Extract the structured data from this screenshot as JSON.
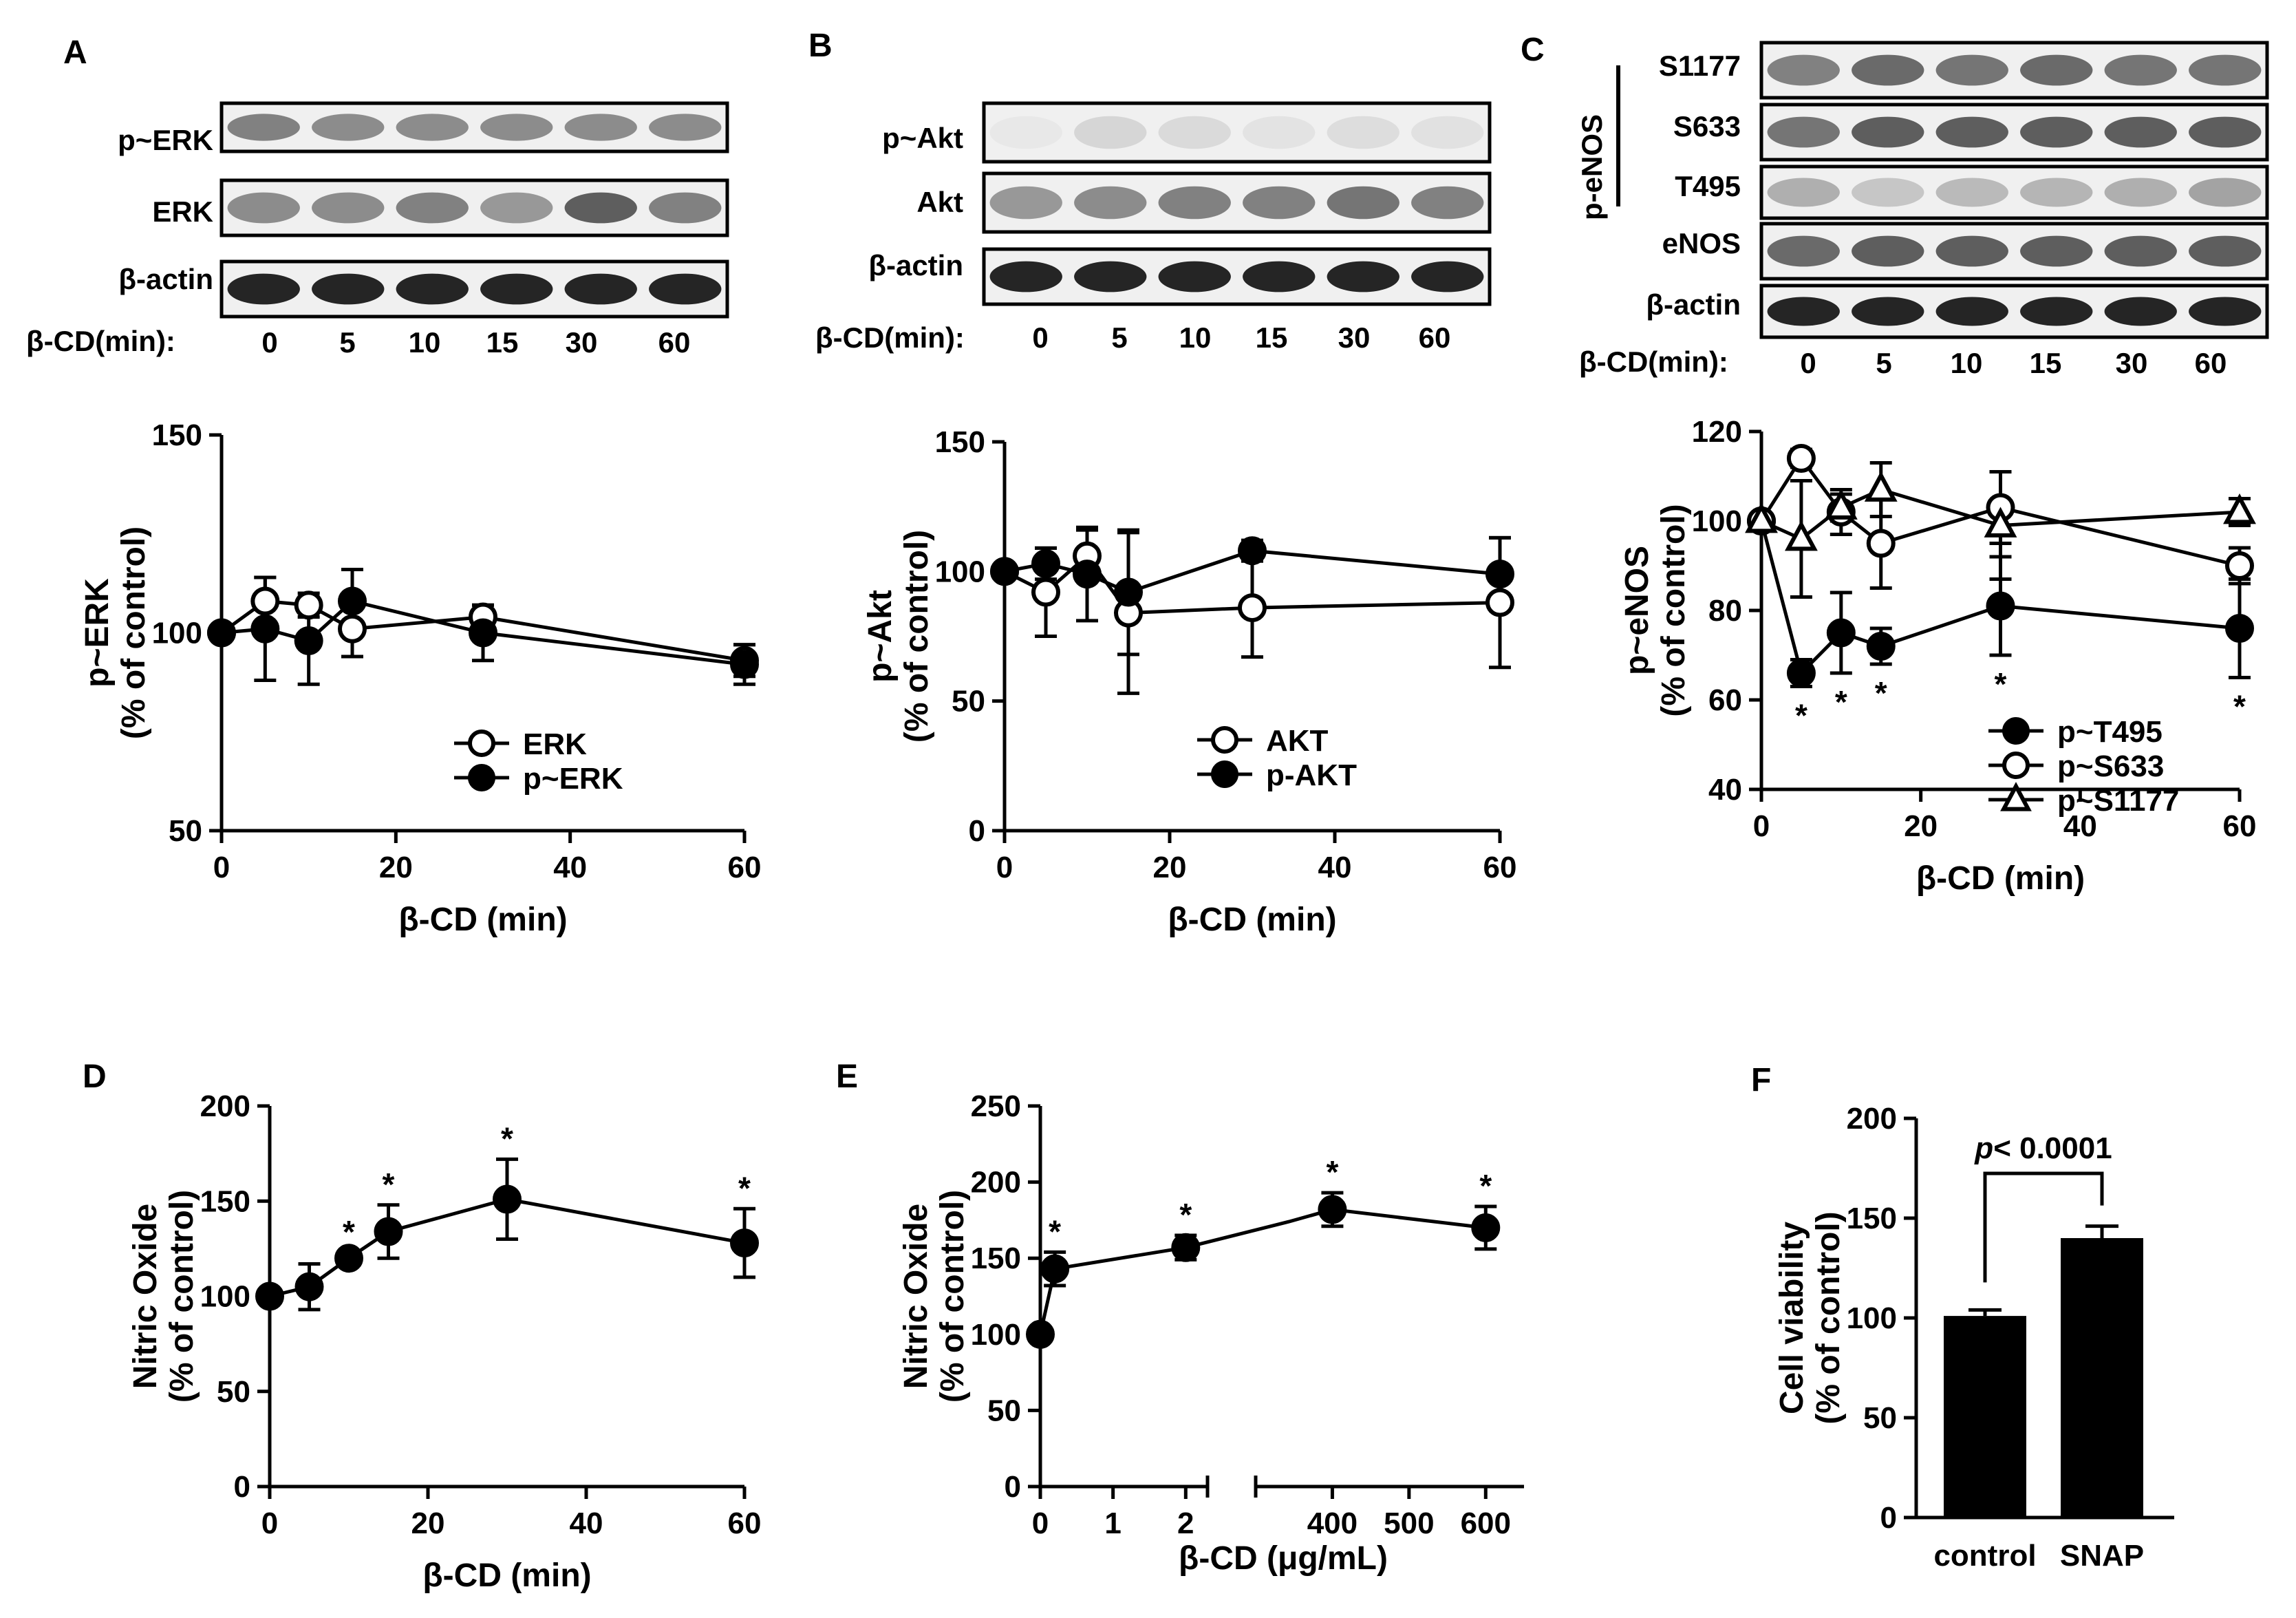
{
  "blots": [
    {
      "letter": "A",
      "rows": [
        "p~ERK",
        "ERK",
        "β-actin"
      ],
      "lane_title": "β-CD(min):",
      "lanes": [
        "0",
        "5",
        "10",
        "15",
        "30",
        "60"
      ]
    },
    {
      "letter": "B",
      "rows": [
        "p~Akt",
        "Akt",
        "β-actin"
      ],
      "lane_title": "β-CD(min):",
      "lanes": [
        "0",
        "5",
        "10",
        "15",
        "30",
        "60"
      ]
    },
    {
      "letter": "C",
      "rows": [
        "S1177",
        "S633",
        "T495",
        "eNOS",
        "β-actin"
      ],
      "group_label": "p-eNOS",
      "lane_title": "β-CD(min):",
      "lanes": [
        "0",
        "5",
        "10",
        "15",
        "30",
        "60"
      ]
    }
  ],
  "panel_letters": {
    "D": "D",
    "E": "E",
    "F": "F"
  },
  "colors": {
    "ink": "#000000",
    "paper": "#ffffff",
    "blot_bg": "#f2f2f2"
  },
  "chart_data": [
    {
      "id": "A",
      "type": "line",
      "xlabel": "β-CD (min)",
      "ylabel": "p~ERK",
      "ylabel2": "(% of control)",
      "xlim": [
        0,
        60
      ],
      "ylim": [
        50,
        150
      ],
      "xticks": [
        0,
        20,
        40,
        60
      ],
      "yticks": [
        50,
        100,
        150
      ],
      "legend_position": "bottom-right",
      "series": [
        {
          "name": "ERK",
          "marker": "open-circle",
          "x": [
            0,
            5,
            10,
            15,
            30,
            60
          ],
          "y": [
            100,
            108,
            107,
            101,
            104,
            93
          ],
          "err": [
            0,
            6,
            3,
            7,
            3,
            4
          ]
        },
        {
          "name": "p~ERK",
          "marker": "filled-circle",
          "x": [
            0,
            5,
            10,
            15,
            30,
            60
          ],
          "y": [
            100,
            101,
            98,
            108,
            100,
            92
          ],
          "err": [
            0,
            13,
            11,
            8,
            7,
            5
          ]
        }
      ]
    },
    {
      "id": "B",
      "type": "line",
      "xlabel": "β-CD (min)",
      "ylabel": "p~Akt",
      "ylabel2": "(% of control)",
      "xlim": [
        0,
        60
      ],
      "ylim": [
        0,
        150
      ],
      "xticks": [
        0,
        20,
        40,
        60
      ],
      "yticks": [
        0,
        50,
        100,
        150
      ],
      "legend_position": "bottom-right",
      "series": [
        {
          "name": "AKT",
          "marker": "open-circle",
          "x": [
            0,
            5,
            10,
            15,
            30,
            60
          ],
          "y": [
            100,
            92,
            106,
            84,
            86,
            88
          ],
          "err": [
            0,
            17,
            10,
            31,
            19,
            25
          ]
        },
        {
          "name": "p-AKT",
          "marker": "filled-circle",
          "x": [
            0,
            5,
            10,
            15,
            30,
            60
          ],
          "y": [
            100,
            103,
            99,
            92,
            108,
            99
          ],
          "err": [
            0,
            6,
            18,
            24,
            4,
            14
          ]
        }
      ]
    },
    {
      "id": "C",
      "type": "line",
      "xlabel": "β-CD (min)",
      "ylabel": "p~eNOS",
      "ylabel2": "(% of control)",
      "xlim": [
        0,
        60
      ],
      "ylim": [
        40,
        120
      ],
      "xticks": [
        0,
        20,
        40,
        60
      ],
      "yticks": [
        40,
        60,
        80,
        100,
        120
      ],
      "legend_position": "bottom-right",
      "annotations": [
        {
          "x": 5,
          "text": "*"
        },
        {
          "x": 10,
          "text": "*"
        },
        {
          "x": 15,
          "text": "*"
        },
        {
          "x": 30,
          "text": "*"
        },
        {
          "x": 60,
          "text": "*"
        }
      ],
      "series": [
        {
          "name": "p~T495",
          "marker": "filled-circle",
          "x": [
            0,
            5,
            10,
            15,
            30,
            60
          ],
          "y": [
            100,
            66,
            75,
            72,
            81,
            76
          ],
          "err": [
            0,
            3,
            9,
            4,
            11,
            11
          ]
        },
        {
          "name": "p~S633",
          "marker": "open-circle",
          "x": [
            0,
            5,
            10,
            15,
            30,
            60
          ],
          "y": [
            100,
            114,
            102,
            95,
            103,
            90
          ],
          "err": [
            0,
            2,
            5,
            10,
            8,
            4
          ]
        },
        {
          "name": "p~S1177",
          "marker": "open-triangle",
          "x": [
            0,
            5,
            10,
            15,
            30,
            60
          ],
          "y": [
            100,
            96,
            103,
            107,
            99,
            102
          ],
          "err": [
            0,
            13,
            3,
            6,
            12,
            3
          ]
        }
      ]
    },
    {
      "id": "D",
      "type": "line",
      "xlabel": "β-CD (min)",
      "ylabel": "Nitric Oxide",
      "ylabel2": "(% of control)",
      "xlim": [
        0,
        60
      ],
      "ylim": [
        0,
        200
      ],
      "xticks": [
        0,
        20,
        40,
        60
      ],
      "yticks": [
        0,
        50,
        100,
        150,
        200
      ],
      "annotations": [
        {
          "x": 10,
          "text": "*"
        },
        {
          "x": 15,
          "text": "*"
        },
        {
          "x": 30,
          "text": "*"
        },
        {
          "x": 60,
          "text": "*"
        }
      ],
      "series": [
        {
          "name": "Nitric Oxide",
          "marker": "filled-circle",
          "x": [
            0,
            5,
            10,
            15,
            30,
            60
          ],
          "y": [
            100,
            105,
            120,
            134,
            151,
            128
          ],
          "err": [
            0,
            12,
            3,
            14,
            21,
            18
          ]
        }
      ]
    },
    {
      "id": "E",
      "type": "line",
      "xlabel": "β-CD (μg/mL)",
      "ylabel": "Nitric Oxide",
      "ylabel2": "(% of control)",
      "xlim": [
        0,
        600
      ],
      "ylim": [
        0,
        250
      ],
      "broken_axis": true,
      "xticks": [
        "0",
        "1",
        "2",
        "400",
        "500",
        "600"
      ],
      "yticks": [
        0,
        50,
        100,
        150,
        200,
        250
      ],
      "annotations": [
        {
          "x": 0.2,
          "text": "*"
        },
        {
          "x": 2,
          "text": "*"
        },
        {
          "x": 400,
          "text": "*"
        },
        {
          "x": 600,
          "text": "*"
        }
      ],
      "series": [
        {
          "name": "Nitric Oxide",
          "marker": "filled-circle",
          "x": [
            0,
            0.2,
            2,
            400,
            600
          ],
          "y": [
            100,
            143,
            157,
            182,
            170
          ],
          "err": [
            0,
            11,
            8,
            11,
            14
          ]
        }
      ]
    },
    {
      "id": "F",
      "type": "bar",
      "xlabel": "",
      "ylabel": "Cell viability",
      "ylabel2": "(% of control)",
      "categories": [
        "control",
        "SNAP"
      ],
      "values": [
        101,
        140
      ],
      "err": [
        3,
        6
      ],
      "ylim": [
        0,
        200
      ],
      "yticks": [
        0,
        50,
        100,
        150,
        200
      ],
      "annotation": {
        "p_label": "p",
        "p_text": "< 0.0001"
      }
    }
  ]
}
